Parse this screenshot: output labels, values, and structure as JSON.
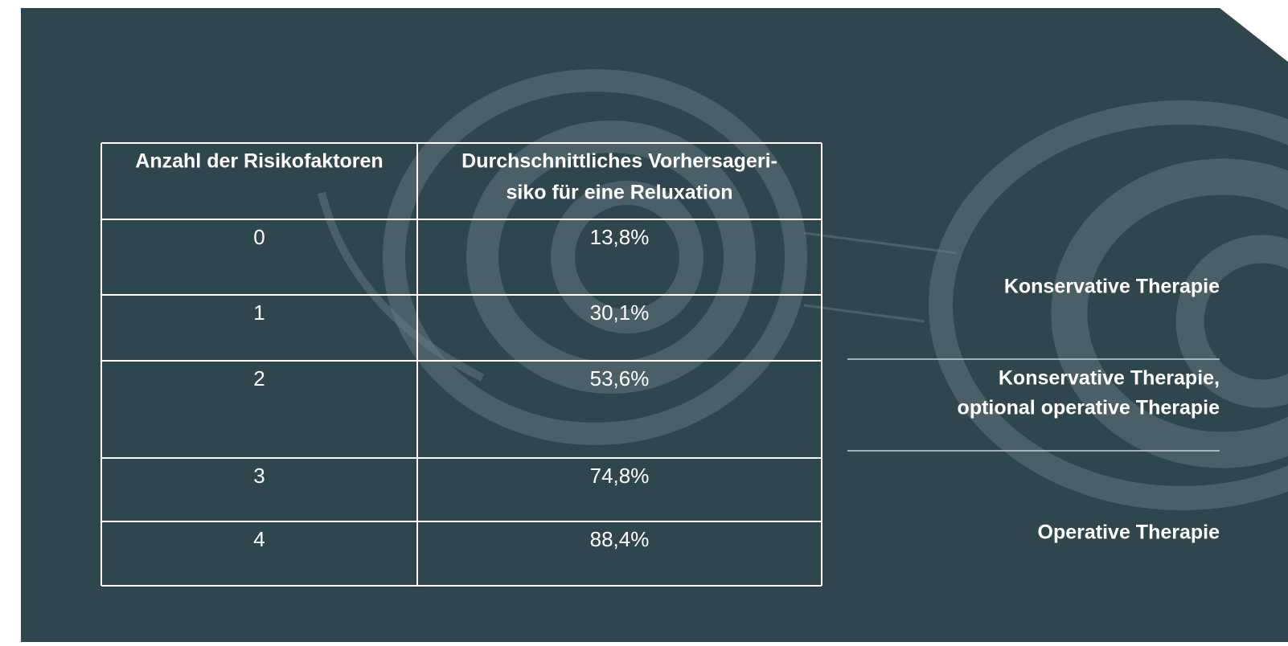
{
  "table": {
    "header": [
      "Anzahl der Risikofaktoren",
      [
        "Durchschnittliches Vorhersageri-",
        "siko für eine Reluxation"
      ]
    ],
    "rows": [
      [
        "0",
        "13,8%"
      ],
      [
        "1",
        "30,1%"
      ],
      [
        "2",
        "53,6%"
      ],
      [
        "3",
        "74,8%"
      ],
      [
        "4",
        "88,4%"
      ]
    ]
  },
  "recommendations": [
    [
      "Konservative Therapie"
    ],
    [
      "Konservative Therapie,",
      "optional operative Therapie"
    ],
    [
      "Operative Therapie"
    ]
  ]
}
